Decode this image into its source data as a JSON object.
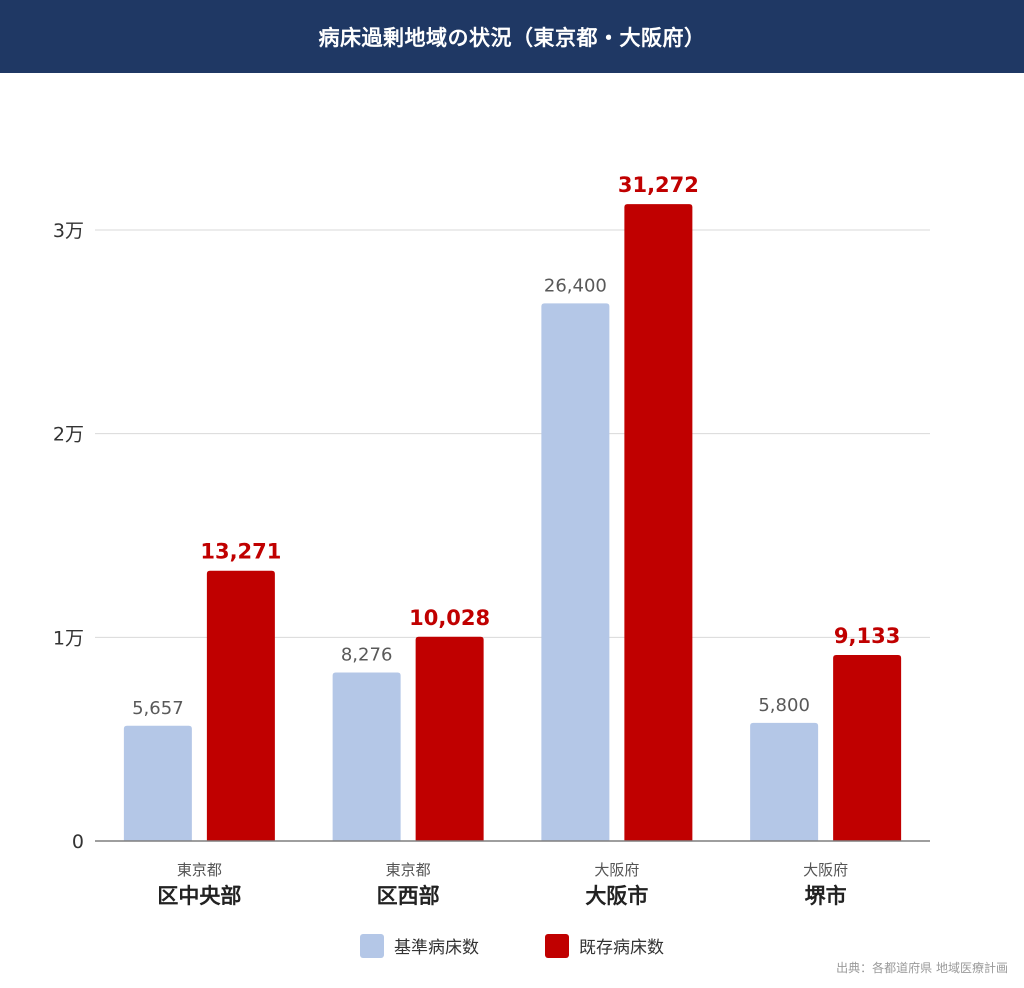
{
  "title": "病床過剰地域の状況（東京都・大阪府）",
  "source": "出典：各都道府県 地域医療計画",
  "colors": {
    "header_bg": "#1f3864",
    "base": "#b4c7e7",
    "existing": "#c00000",
    "axis": "#7f7f7f",
    "grid": "#d9d9d9",
    "base_label": "#595959",
    "existing_label": "#c00000"
  },
  "chart_data": {
    "type": "bar",
    "categories": [
      {
        "prefecture": "東京都",
        "region": "区中央部"
      },
      {
        "prefecture": "東京都",
        "region": "区西部"
      },
      {
        "prefecture": "大阪府",
        "region": "大阪市"
      },
      {
        "prefecture": "大阪府",
        "region": "堺市"
      }
    ],
    "series": [
      {
        "name": "基準病床数",
        "values": [
          5657,
          8276,
          26400,
          5800
        ],
        "labels": [
          "5,657",
          "8,276",
          "26,400",
          "5,800"
        ],
        "color": "#b4c7e7"
      },
      {
        "name": "既存病床数",
        "values": [
          13271,
          10028,
          31272,
          9133
        ],
        "labels": [
          "13,271",
          "10,028",
          "31,272",
          "9,133"
        ],
        "color": "#c00000"
      }
    ],
    "ylim": [
      0,
      30000
    ],
    "yticks": [
      {
        "value": 0,
        "label": "0"
      },
      {
        "value": 10000,
        "label": "1万"
      },
      {
        "value": 20000,
        "label": "2万"
      },
      {
        "value": 30000,
        "label": "3万"
      }
    ],
    "grid": true,
    "legend": "bottom"
  }
}
